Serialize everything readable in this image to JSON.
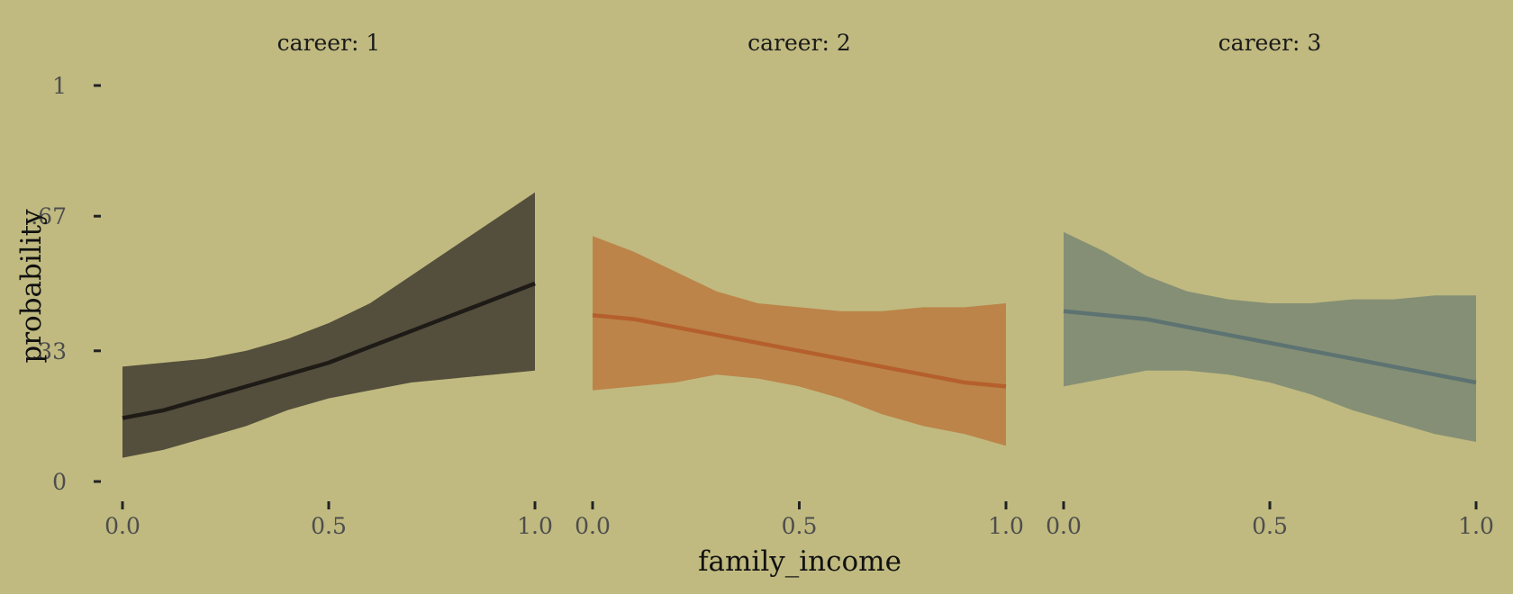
{
  "chart_data": {
    "type": "line",
    "xlabel": "family_income",
    "ylabel": "probability",
    "ylim": [
      0,
      1
    ],
    "xlim": [
      0,
      1
    ],
    "y_ticks": [
      {
        "value": 0,
        "label": "0"
      },
      {
        "value": 0.33,
        "label": ".33"
      },
      {
        "value": 0.67,
        "label": ".67"
      },
      {
        "value": 1,
        "label": "1"
      }
    ],
    "x_ticks": [
      {
        "value": 0,
        "label": "0.0"
      },
      {
        "value": 0.5,
        "label": "0.5"
      },
      {
        "value": 1,
        "label": "1.0"
      }
    ],
    "background": "#c0ba80",
    "grid": false,
    "legend": "none",
    "panels": [
      {
        "title": "career: 1",
        "color_line": "#1e1b17",
        "color_band": "#544e3c",
        "x": [
          0.0,
          0.1,
          0.2,
          0.3,
          0.4,
          0.5,
          0.6,
          0.7,
          0.8,
          0.9,
          1.0
        ],
        "y": [
          0.16,
          0.18,
          0.21,
          0.24,
          0.27,
          0.3,
          0.34,
          0.38,
          0.42,
          0.46,
          0.5
        ],
        "lower": [
          0.06,
          0.08,
          0.11,
          0.14,
          0.18,
          0.21,
          0.23,
          0.25,
          0.26,
          0.27,
          0.28
        ],
        "upper": [
          0.29,
          0.3,
          0.31,
          0.33,
          0.36,
          0.4,
          0.45,
          0.52,
          0.59,
          0.66,
          0.73
        ]
      },
      {
        "title": "career: 2",
        "color_line": "#b5602c",
        "color_band": "#bc8449",
        "x": [
          0.0,
          0.1,
          0.2,
          0.3,
          0.4,
          0.5,
          0.6,
          0.7,
          0.8,
          0.9,
          1.0
        ],
        "y": [
          0.42,
          0.41,
          0.39,
          0.37,
          0.35,
          0.33,
          0.31,
          0.29,
          0.27,
          0.25,
          0.24
        ],
        "lower": [
          0.23,
          0.24,
          0.25,
          0.27,
          0.26,
          0.24,
          0.21,
          0.17,
          0.14,
          0.12,
          0.09
        ],
        "upper": [
          0.62,
          0.58,
          0.53,
          0.48,
          0.45,
          0.44,
          0.43,
          0.43,
          0.44,
          0.44,
          0.45
        ]
      },
      {
        "title": "career: 3",
        "color_line": "#5d7372",
        "color_band": "#858f75",
        "x": [
          0.0,
          0.1,
          0.2,
          0.3,
          0.4,
          0.5,
          0.6,
          0.7,
          0.8,
          0.9,
          1.0
        ],
        "y": [
          0.43,
          0.42,
          0.41,
          0.39,
          0.37,
          0.35,
          0.33,
          0.31,
          0.29,
          0.27,
          0.25
        ],
        "lower": [
          0.24,
          0.26,
          0.28,
          0.28,
          0.27,
          0.25,
          0.22,
          0.18,
          0.15,
          0.12,
          0.1
        ],
        "upper": [
          0.63,
          0.58,
          0.52,
          0.48,
          0.46,
          0.45,
          0.45,
          0.46,
          0.46,
          0.47,
          0.47
        ]
      }
    ]
  }
}
